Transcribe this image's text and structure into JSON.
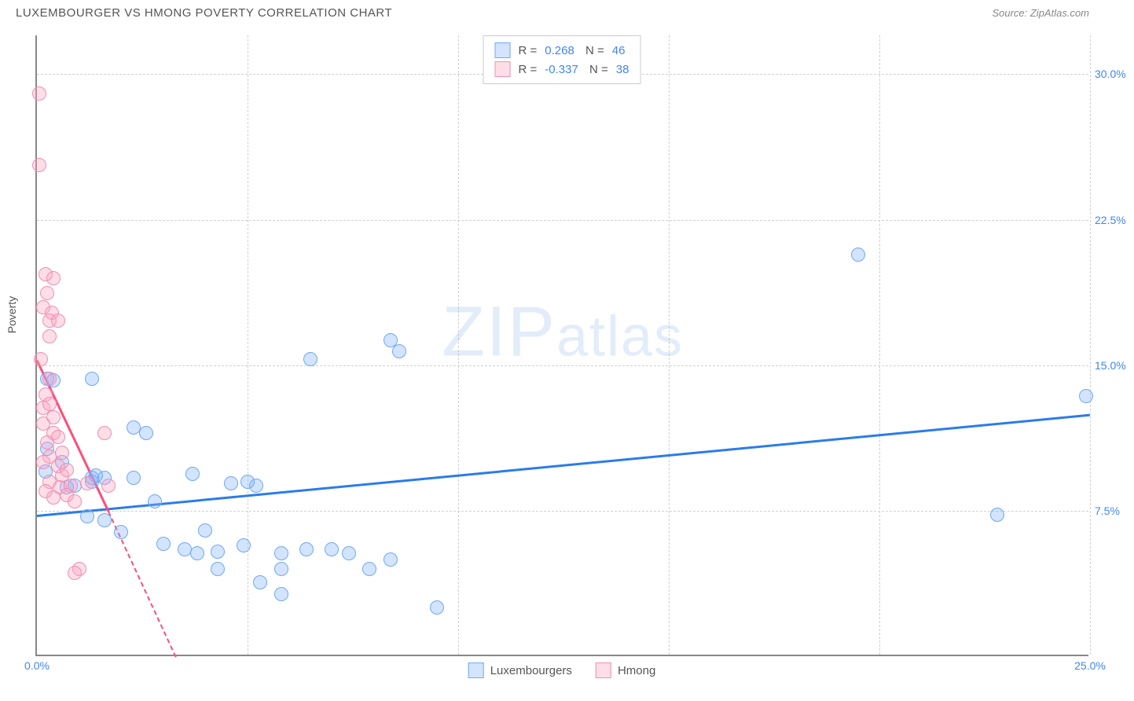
{
  "header": {
    "title": "LUXEMBOURGER VS HMONG POVERTY CORRELATION CHART",
    "source": "Source: ZipAtlas.com"
  },
  "watermark": {
    "big": "ZIP",
    "small": "atlas"
  },
  "chart": {
    "type": "scatter",
    "ylabel": "Poverty",
    "background_color": "#ffffff",
    "grid_color": "#d0d0d0",
    "axis_color": "#888888",
    "xlim": [
      0,
      25
    ],
    "ylim": [
      0,
      32
    ],
    "xticks": [
      0,
      5,
      10,
      15,
      20,
      25
    ],
    "xtick_labels": [
      "0.0%",
      "",
      "",
      "",
      "",
      "25.0%"
    ],
    "yticks": [
      7.5,
      15.0,
      22.5,
      30.0
    ],
    "ytick_labels": [
      "7.5%",
      "15.0%",
      "22.5%",
      "30.0%"
    ],
    "marker_radius": 9,
    "marker_stroke_width": 1.5,
    "series": [
      {
        "name": "Luxembourgers",
        "fill": "rgba(130, 177, 255, 0.35)",
        "stroke": "#6fa8f5",
        "trend_color": "#2b7ce9",
        "trend": {
          "x1": 0,
          "y1": 7.3,
          "x2": 25,
          "y2": 12.5
        },
        "R": "0.268",
        "N": "46",
        "points": [
          [
            0.25,
            14.3
          ],
          [
            0.4,
            14.2
          ],
          [
            1.3,
            14.3
          ],
          [
            1.3,
            9.0
          ],
          [
            2.3,
            11.8
          ],
          [
            0.25,
            10.7
          ],
          [
            0.6,
            10.0
          ],
          [
            2.6,
            11.5
          ],
          [
            2.3,
            9.2
          ],
          [
            0.9,
            8.8
          ],
          [
            1.3,
            9.2
          ],
          [
            0.7,
            8.7
          ],
          [
            1.6,
            9.2
          ],
          [
            1.4,
            9.3
          ],
          [
            3.7,
            9.4
          ],
          [
            1.2,
            7.2
          ],
          [
            1.6,
            7.0
          ],
          [
            0.2,
            9.5
          ],
          [
            5.2,
            8.8
          ],
          [
            4.6,
            8.9
          ],
          [
            2.8,
            8.0
          ],
          [
            3.5,
            5.5
          ],
          [
            3.0,
            5.8
          ],
          [
            3.8,
            5.3
          ],
          [
            4.3,
            5.4
          ],
          [
            4.3,
            4.5
          ],
          [
            4.9,
            5.7
          ],
          [
            5.3,
            3.8
          ],
          [
            5.8,
            3.2
          ],
          [
            5.8,
            4.5
          ],
          [
            5.8,
            5.3
          ],
          [
            6.4,
            5.5
          ],
          [
            6.5,
            15.3
          ],
          [
            7.0,
            5.5
          ],
          [
            7.4,
            5.3
          ],
          [
            7.9,
            4.5
          ],
          [
            8.4,
            5.0
          ],
          [
            8.4,
            16.3
          ],
          [
            8.6,
            15.7
          ],
          [
            9.5,
            2.5
          ],
          [
            19.5,
            20.7
          ],
          [
            22.8,
            7.3
          ],
          [
            24.9,
            13.4
          ],
          [
            2.0,
            6.4
          ],
          [
            4.0,
            6.5
          ],
          [
            5.0,
            9.0
          ]
        ]
      },
      {
        "name": "Hmong",
        "fill": "rgba(255, 160, 190, 0.35)",
        "stroke": "#f08fb0",
        "trend_color": "#ff4d7a",
        "trend": {
          "x1": 0,
          "y1": 15.3,
          "x2": 1.7,
          "y2": 7.5
        },
        "trend_dash": {
          "x1": 1.7,
          "y1": 7.5,
          "x2": 3.3,
          "y2": 0
        },
        "R": "-0.337",
        "N": "38",
        "points": [
          [
            0.05,
            29.0
          ],
          [
            0.05,
            25.3
          ],
          [
            0.2,
            19.7
          ],
          [
            0.4,
            19.5
          ],
          [
            0.25,
            18.7
          ],
          [
            0.15,
            18.0
          ],
          [
            0.35,
            17.7
          ],
          [
            0.3,
            17.3
          ],
          [
            0.5,
            17.3
          ],
          [
            0.3,
            16.5
          ],
          [
            0.1,
            15.3
          ],
          [
            0.3,
            14.3
          ],
          [
            0.2,
            13.5
          ],
          [
            0.15,
            12.8
          ],
          [
            0.4,
            12.3
          ],
          [
            0.15,
            12.0
          ],
          [
            0.4,
            11.5
          ],
          [
            0.5,
            11.3
          ],
          [
            0.25,
            11.0
          ],
          [
            0.3,
            10.3
          ],
          [
            0.15,
            10.0
          ],
          [
            0.5,
            9.8
          ],
          [
            0.6,
            9.3
          ],
          [
            0.7,
            9.6
          ],
          [
            0.3,
            9.0
          ],
          [
            0.55,
            8.7
          ],
          [
            0.8,
            8.8
          ],
          [
            1.2,
            8.9
          ],
          [
            1.7,
            8.8
          ],
          [
            1.6,
            11.5
          ],
          [
            0.7,
            8.3
          ],
          [
            0.9,
            8.0
          ],
          [
            1.0,
            4.5
          ],
          [
            0.9,
            4.3
          ],
          [
            0.2,
            8.5
          ],
          [
            0.4,
            8.2
          ],
          [
            0.6,
            10.5
          ],
          [
            0.3,
            13.0
          ]
        ]
      }
    ],
    "legend_top": [
      {
        "swatch_fill": "rgba(130, 177, 255, 0.35)",
        "swatch_stroke": "#6fa8f5"
      },
      {
        "swatch_fill": "rgba(255, 160, 190, 0.35)",
        "swatch_stroke": "#f08fb0"
      }
    ],
    "legend_bottom": [
      {
        "label": "Luxembourgers",
        "swatch_fill": "rgba(130, 177, 255, 0.35)",
        "swatch_stroke": "#6fa8f5"
      },
      {
        "label": "Hmong",
        "swatch_fill": "rgba(255, 160, 190, 0.35)",
        "swatch_stroke": "#f08fb0"
      }
    ]
  }
}
